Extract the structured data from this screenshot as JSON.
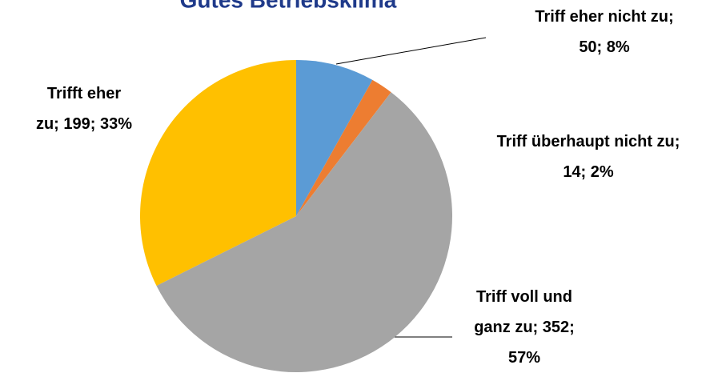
{
  "chart_data": {
    "type": "pie",
    "title": "Gutes Betriebsklima",
    "values": [
      50,
      14,
      352,
      199
    ],
    "value_labels": [
      [
        "Triff eher nicht zu;",
        "50; 8%"
      ],
      [
        "Triff überhaupt nicht zu;",
        "14; 2%"
      ],
      [
        "Triff voll und",
        "ganz zu; 352;",
        "57%"
      ],
      [
        "Trifft eher",
        "zu; 199; 33%"
      ]
    ],
    "colors": [
      "#5b9bd5",
      "#ed7d31",
      "#a5a5a5",
      "#ffc000"
    ]
  }
}
